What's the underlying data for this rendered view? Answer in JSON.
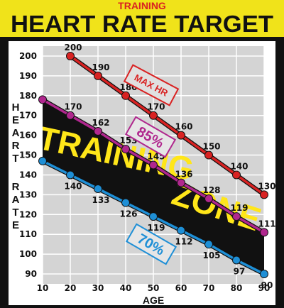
{
  "supertitle": "TRAINING",
  "title": "HEART RATE TARGET",
  "zone_text": "TRAINING ZONE",
  "colors": {
    "max": "#d92222",
    "p85": "#b0278e",
    "p70": "#1e8fd6",
    "band": "#111111",
    "zone_text": "#ffe619",
    "header_bg": "#f0e31a"
  },
  "chart_data": {
    "type": "line",
    "title": "HEART RATE TARGET",
    "xlabel": "AGE",
    "ylabel": "HEART RATE",
    "x": [
      10,
      20,
      30,
      40,
      50,
      60,
      70,
      80,
      90
    ],
    "xticks": [
      "10",
      "20",
      "30",
      "40",
      "50",
      "60",
      "70",
      "80",
      "90"
    ],
    "yticks": [
      "90",
      "100",
      "110",
      "120",
      "130",
      "140",
      "150",
      "160",
      "170",
      "180",
      "190",
      "200"
    ],
    "xlim": [
      10,
      90
    ],
    "ylim": [
      85,
      205
    ],
    "grid": true,
    "series": [
      {
        "name": "MAX HR",
        "key": "max",
        "x": [
          20,
          30,
          40,
          50,
          60,
          70,
          80,
          90
        ],
        "values": [
          200,
          190,
          180,
          170,
          160,
          150,
          140,
          130
        ]
      },
      {
        "name": "85%",
        "key": "p85",
        "x": [
          10,
          20,
          30,
          40,
          50,
          60,
          70,
          80,
          90
        ],
        "values": [
          null,
          170,
          162,
          153,
          145,
          136,
          128,
          119,
          111
        ]
      },
      {
        "name": "70%",
        "key": "p70",
        "x": [
          10,
          20,
          30,
          40,
          50,
          60,
          70,
          80,
          90
        ],
        "values": [
          null,
          140,
          133,
          126,
          119,
          112,
          105,
          97,
          90
        ]
      }
    ]
  }
}
